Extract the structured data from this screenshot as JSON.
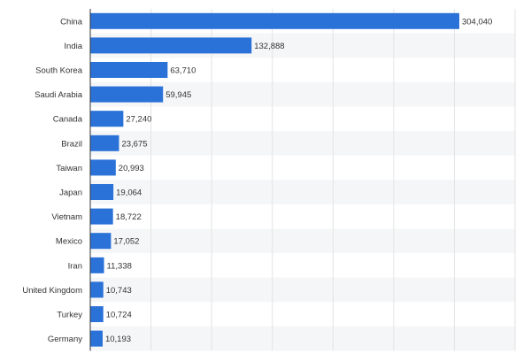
{
  "chart_data": {
    "type": "bar",
    "orientation": "horizontal",
    "title": "",
    "xlabel": "",
    "ylabel": "",
    "categories": [
      "China",
      "India",
      "South Korea",
      "Saudi Arabia",
      "Canada",
      "Brazil",
      "Taiwan",
      "Japan",
      "Vietnam",
      "Mexico",
      "Iran",
      "United Kingdom",
      "Turkey",
      "Germany"
    ],
    "values": [
      304040,
      132888,
      63710,
      59945,
      27240,
      23675,
      20993,
      19064,
      18722,
      17052,
      11338,
      10743,
      10724,
      10193
    ],
    "value_labels": [
      "304,040",
      "132,888",
      "63,710",
      "59,945",
      "27,240",
      "23,675",
      "20,993",
      "19,064",
      "18,722",
      "17,052",
      "11,338",
      "10,743",
      "10,724",
      "10,193"
    ],
    "xlim": [
      0,
      350000
    ],
    "grid": true,
    "bar_color": "#2a71d8",
    "stripe_color": "#f5f6f8",
    "grid_color": "#e3e3e3",
    "axis_color": "#333333"
  }
}
